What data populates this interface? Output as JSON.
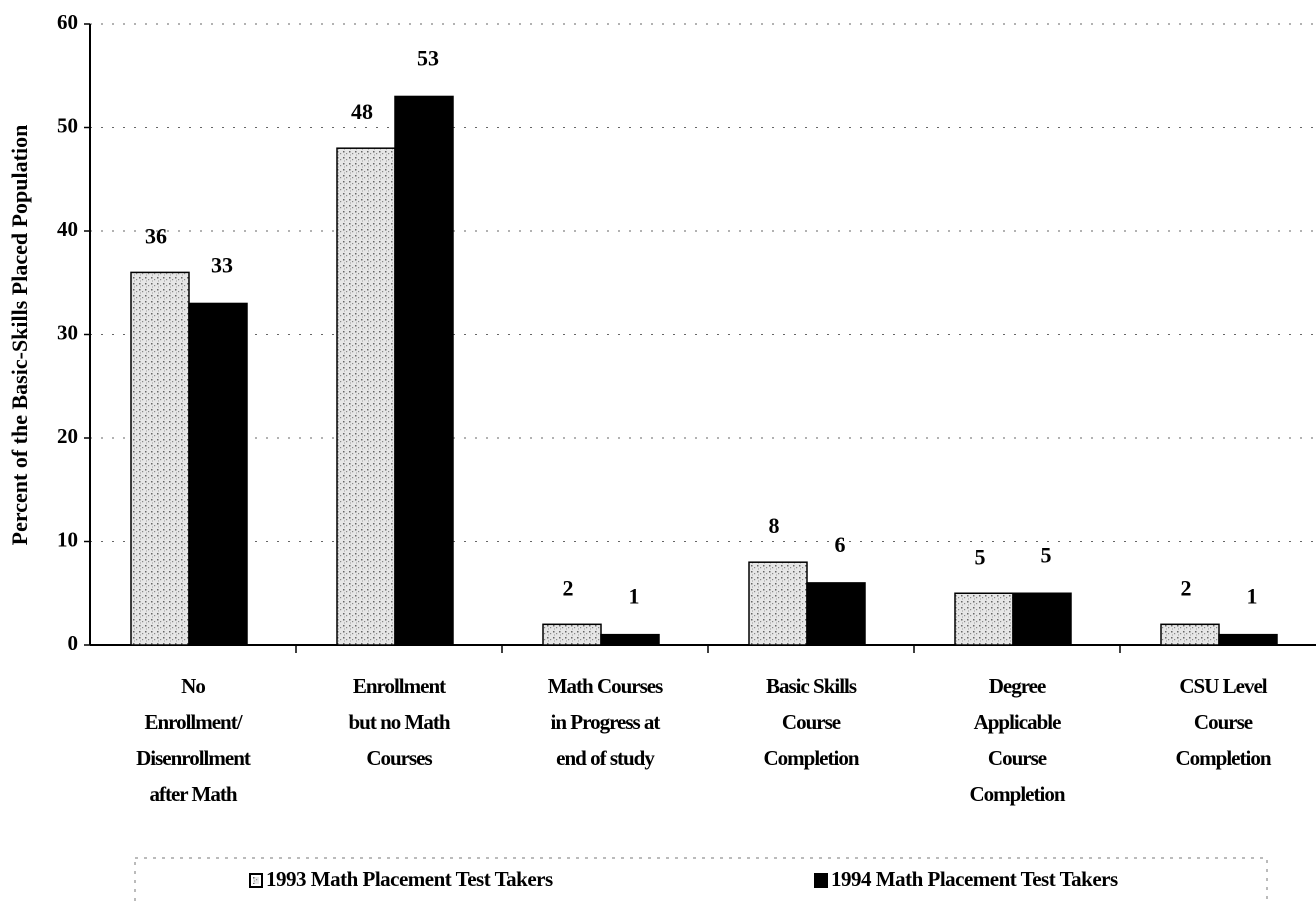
{
  "chart_data": {
    "type": "bar",
    "y_label": "Percent of the Basic-Skills Placed Population",
    "categories": [
      [
        "No",
        "Enrollment/",
        "Disenrollment",
        "after Math"
      ],
      [
        "Enrollment",
        "but no Math",
        "Courses"
      ],
      [
        "Math Courses",
        "in Progress at",
        "end of study"
      ],
      [
        "Basic Skills",
        "Course",
        "Completion"
      ],
      [
        "Degree",
        "Applicable",
        "Course",
        "Completion"
      ],
      [
        "CSU Level",
        "Course",
        "Completion"
      ]
    ],
    "series": [
      {
        "name": "1993 Math Placement Test Takers",
        "color": "#c8c8c8",
        "values": [
          36,
          48,
          2,
          8,
          5,
          2
        ]
      },
      {
        "name": "1994 Math Placement Test Takers",
        "color": "#000000",
        "values": [
          33,
          53,
          1,
          6,
          5,
          1
        ]
      }
    ],
    "ylim": [
      0,
      60
    ],
    "yticks": [
      0,
      10,
      20,
      30,
      40,
      50,
      60
    ],
    "grid": true,
    "legend": "bottom"
  }
}
